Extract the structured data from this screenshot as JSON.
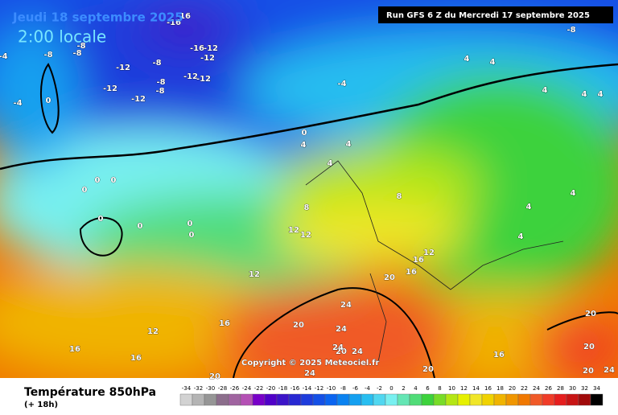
{
  "header": {
    "date": "Jeudi 18 septembre 2025",
    "time": "2:00 locale",
    "run": "Run GFS 6 Z du Mercredi 17 septembre 2025"
  },
  "copyright": "Copyright © 2025 Meteociel.fr",
  "footer": {
    "title": "Température 850hPa",
    "subtitle": "(+ 18h)"
  },
  "scale": {
    "labels": [
      -34,
      -32,
      -30,
      -28,
      -26,
      -24,
      -22,
      -20,
      -18,
      -16,
      -14,
      -12,
      -10,
      -8,
      -6,
      -4,
      -2,
      0,
      2,
      4,
      6,
      8,
      10,
      12,
      14,
      16,
      18,
      20,
      22,
      24,
      26,
      28,
      30,
      32,
      34
    ],
    "colors": [
      "#d2d2d2",
      "#b4b4b4",
      "#969696",
      "#8c6e8c",
      "#a064a0",
      "#b450b4",
      "#7800c8",
      "#5000c8",
      "#3c14c8",
      "#2828d2",
      "#1e3cdc",
      "#1450e6",
      "#0a64f0",
      "#0a82f0",
      "#14a0f0",
      "#28bef0",
      "#50d7f0",
      "#78f0f0",
      "#64e6b4",
      "#50dc78",
      "#3cd23c",
      "#78dc28",
      "#b4e614",
      "#e6f000",
      "#f0e628",
      "#f0d200",
      "#f0b400",
      "#f09600",
      "#f07800",
      "#f05a28",
      "#f03c28",
      "#e61e1e",
      "#c81414",
      "#a00a0a",
      "#000000"
    ]
  },
  "contours": {
    "labels": [
      -16,
      -16,
      -8,
      -8,
      -8,
      -8,
      -12,
      -8,
      -16,
      -12,
      -12,
      -12,
      -12,
      -8,
      -12,
      -12,
      -8,
      -4,
      -4,
      -4,
      0,
      0,
      4,
      4,
      4,
      4,
      4,
      4,
      4,
      4,
      4,
      4,
      4,
      0,
      0,
      0,
      0,
      0,
      0,
      0,
      8,
      8,
      12,
      12,
      12,
      12,
      16,
      16,
      16,
      16,
      16,
      16,
      20,
      20,
      20,
      20,
      20,
      20,
      20,
      24,
      24,
      24,
      24,
      24,
      24,
      12,
      20
    ]
  }
}
